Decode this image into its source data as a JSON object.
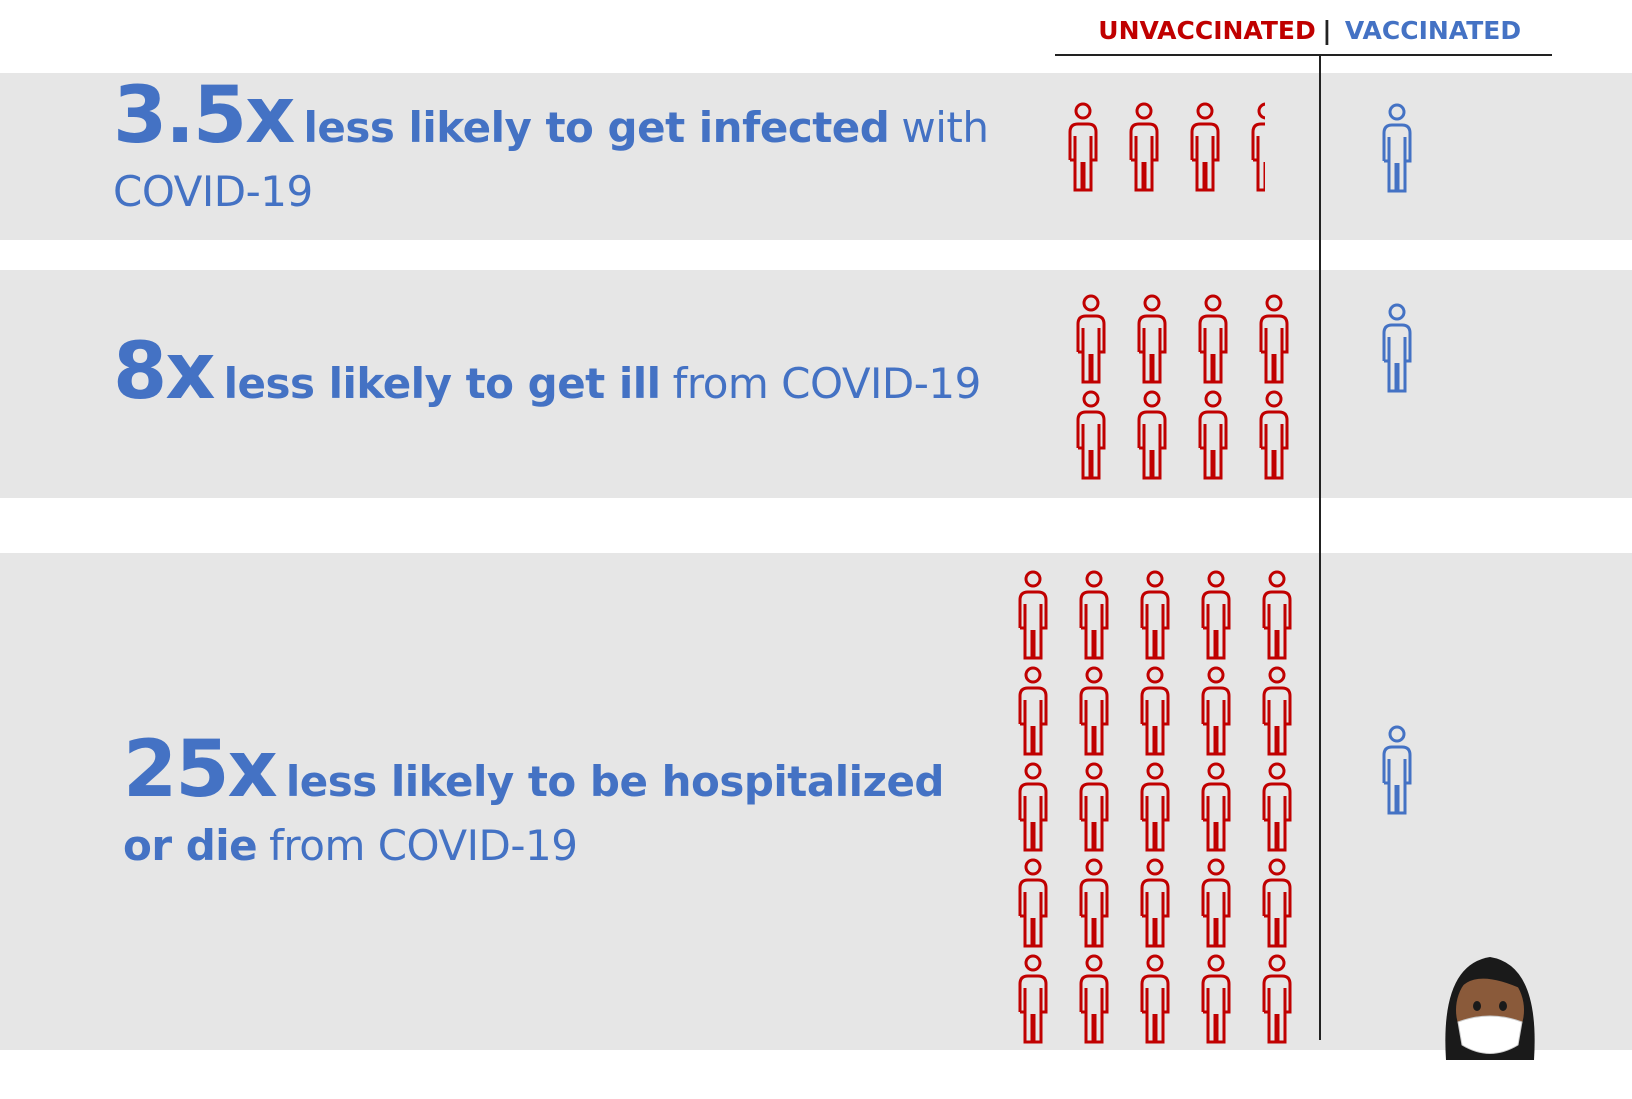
{
  "chart_data": {
    "type": "pictogram",
    "categories": [
      {
        "bold": "less likely to get infected",
        "plain": "with COVID-19"
      },
      {
        "bold": "less likely to get ill",
        "plain": "from COVID-19"
      },
      {
        "bold": "less likely to be hospitalized or die",
        "plain": "from COVID-19"
      }
    ],
    "series": [
      {
        "name": "UNVACCINATED",
        "color": "#c00000",
        "values": [
          3.5,
          8,
          25
        ],
        "value_labels": [
          "3.5x",
          "8x",
          "25x"
        ]
      },
      {
        "name": "VACCINATED",
        "color": "#4472c4",
        "values": [
          1,
          1,
          1
        ]
      }
    ],
    "separator": "|"
  }
}
